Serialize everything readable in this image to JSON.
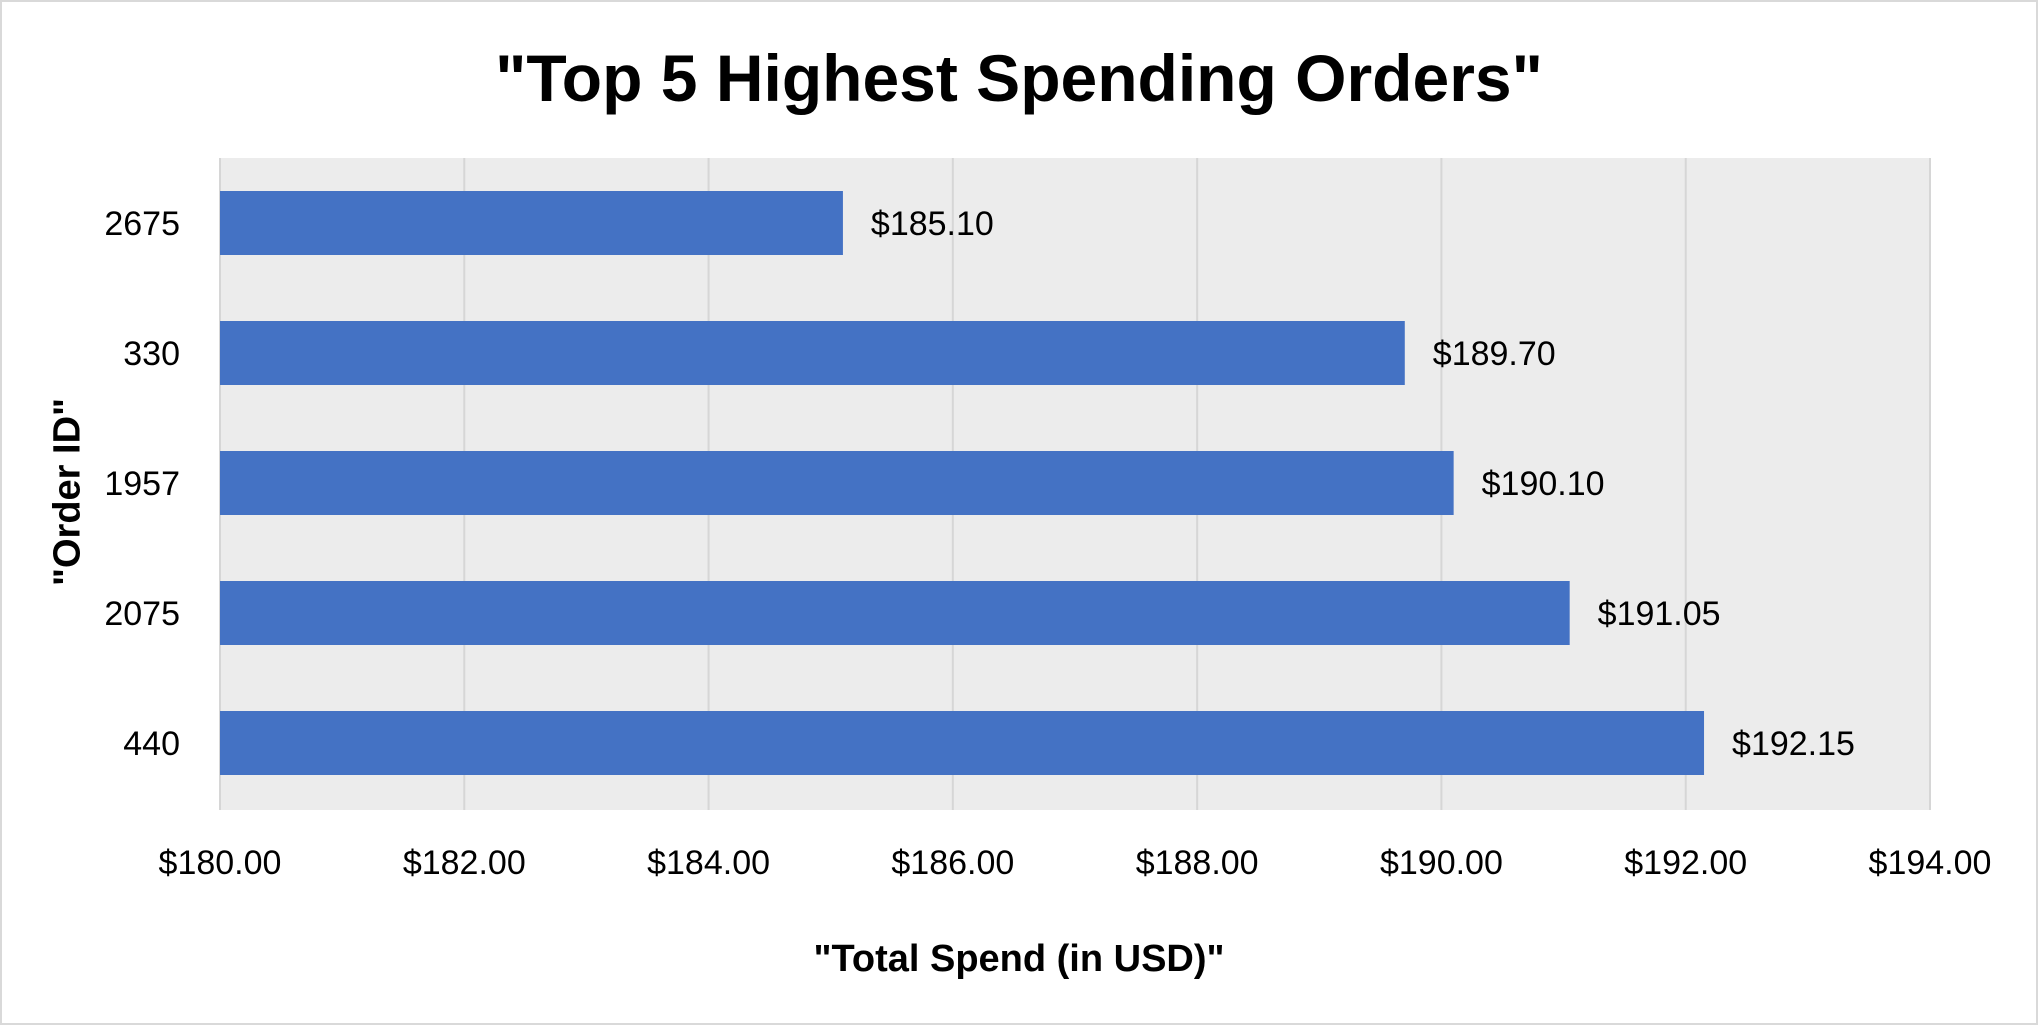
{
  "chart_data": {
    "type": "bar",
    "orientation": "horizontal",
    "title": "\"Top 5 Highest Spending Orders\"",
    "xlabel": "\"Total Spend (in USD)\"",
    "ylabel": "\"Order ID\"",
    "categories": [
      "2675",
      "330",
      "1957",
      "2075",
      "440"
    ],
    "values": [
      185.1,
      189.7,
      190.1,
      191.05,
      192.15
    ],
    "data_labels": [
      "$185.10",
      "$189.70",
      "$190.10",
      "$191.05",
      "$192.15"
    ],
    "xlim": [
      180,
      194
    ],
    "x_ticks": [
      180,
      182,
      184,
      186,
      188,
      190,
      192,
      194
    ],
    "x_tick_labels": [
      "$180.00",
      "$182.00",
      "$184.00",
      "$186.00",
      "$188.00",
      "$190.00",
      "$192.00",
      "$194.00"
    ],
    "grid": true,
    "legend": "none",
    "bar_color": "#4472c4",
    "plot_background": "#ececec",
    "gridline_color": "#d6d6d6"
  }
}
